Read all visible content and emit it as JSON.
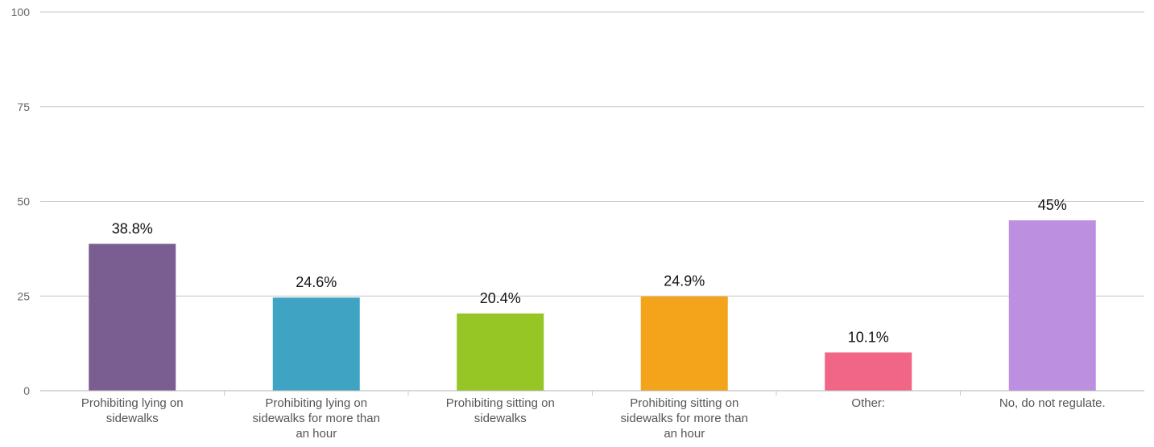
{
  "chart_data": {
    "type": "bar",
    "categories": [
      [
        "Prohibiting lying on",
        "sidewalks"
      ],
      [
        "Prohibiting lying on",
        "sidewalks for more than",
        "an hour"
      ],
      [
        "Prohibiting sitting on",
        "sidewalks"
      ],
      [
        "Prohibiting sitting on",
        "sidewalks for more than",
        "an hour"
      ],
      [
        "Other:"
      ],
      [
        "No, do not regulate."
      ]
    ],
    "values": [
      38.8,
      24.6,
      20.4,
      24.9,
      10.1,
      45
    ],
    "data_labels": [
      "38.8%",
      "24.6%",
      "20.4%",
      "24.9%",
      "10.1%",
      "45%"
    ],
    "colors": [
      "#7b5e91",
      "#3fa3c4",
      "#95c625",
      "#f4a41b",
      "#f16687",
      "#bc8fe0"
    ],
    "y_ticks": [
      0,
      25,
      50,
      75,
      100
    ],
    "ylim": [
      0,
      100
    ],
    "grid": true,
    "legend": "none"
  }
}
